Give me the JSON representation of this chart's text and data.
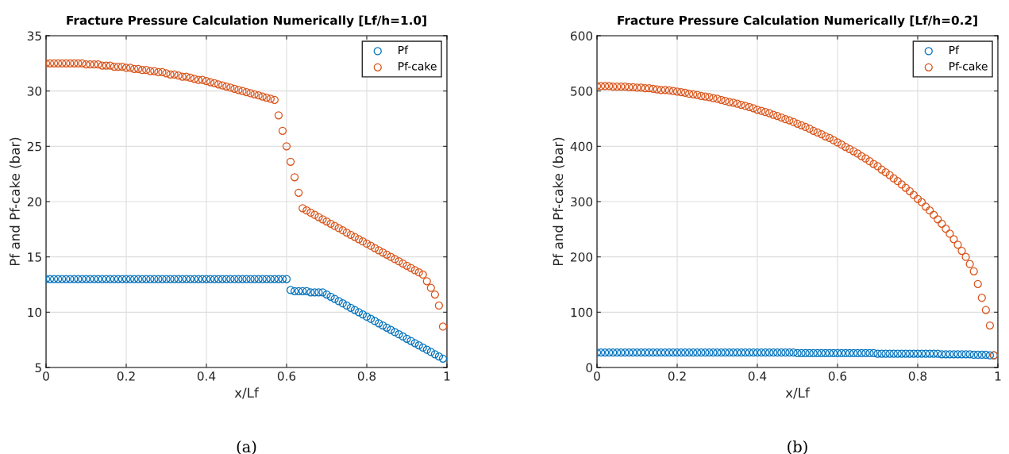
{
  "chart_data": [
    {
      "type": "scatter",
      "title": "Fracture Pressure Calculation Numerically [Lf/h=1.0]",
      "xlabel": "x/Lf",
      "ylabel": "Pf and Pf-cake (bar)",
      "annotations": [
        "(a)"
      ],
      "x": [
        0,
        0.01,
        0.02,
        0.03,
        0.04,
        0.05,
        0.06,
        0.07,
        0.08,
        0.09,
        0.1,
        0.11,
        0.12,
        0.13,
        0.14,
        0.15,
        0.16,
        0.17,
        0.18,
        0.19,
        0.2,
        0.21,
        0.22,
        0.23,
        0.24,
        0.25,
        0.26,
        0.27,
        0.28,
        0.29,
        0.3,
        0.31,
        0.32,
        0.33,
        0.34,
        0.35,
        0.36,
        0.37,
        0.38,
        0.39,
        0.4,
        0.41,
        0.42,
        0.43,
        0.44,
        0.45,
        0.46,
        0.47,
        0.48,
        0.49,
        0.5,
        0.51,
        0.52,
        0.53,
        0.54,
        0.55,
        0.56,
        0.57,
        0.58,
        0.59,
        0.6,
        0.61,
        0.62,
        0.63,
        0.64,
        0.65,
        0.66,
        0.67,
        0.68,
        0.69,
        0.7,
        0.71,
        0.72,
        0.73,
        0.74,
        0.75,
        0.76,
        0.77,
        0.78,
        0.79,
        0.8,
        0.81,
        0.82,
        0.83,
        0.84,
        0.85,
        0.86,
        0.87,
        0.88,
        0.89,
        0.9,
        0.91,
        0.92,
        0.93,
        0.94,
        0.95,
        0.96,
        0.97,
        0.98,
        0.99
      ],
      "series": [
        {
          "name": "Pf",
          "color": "#0072bd",
          "values": [
            13,
            13,
            13,
            13,
            13,
            13,
            13,
            13,
            13,
            13,
            13,
            13,
            13,
            13,
            13,
            13,
            13,
            13,
            13,
            13,
            13,
            13,
            13,
            13,
            13,
            13,
            13,
            13,
            13,
            13,
            13,
            13,
            13,
            13,
            13,
            13,
            13,
            13,
            13,
            13,
            13,
            13,
            13,
            13,
            13,
            13,
            13,
            13,
            13,
            13,
            13,
            13,
            13,
            13,
            13,
            13,
            13,
            13,
            13,
            13,
            13,
            12.0,
            11.9,
            11.9,
            11.9,
            11.9,
            11.8,
            11.8,
            11.8,
            11.8,
            11.6,
            11.4,
            11.2,
            11.0,
            10.8,
            10.6,
            10.4,
            10.2,
            10.0,
            9.8,
            9.6,
            9.4,
            9.2,
            9.0,
            8.8,
            8.6,
            8.4,
            8.2,
            8.0,
            7.8,
            7.6,
            7.4,
            7.2,
            7.0,
            6.8,
            6.6,
            6.4,
            6.2,
            6.0,
            5.8
          ]
        },
        {
          "name": "Pf-cake",
          "color": "#d95319",
          "values": [
            32.5,
            32.5,
            32.5,
            32.5,
            32.5,
            32.5,
            32.5,
            32.5,
            32.5,
            32.5,
            32.4,
            32.4,
            32.4,
            32.4,
            32.3,
            32.3,
            32.3,
            32.2,
            32.2,
            32.2,
            32.1,
            32.1,
            32.0,
            32.0,
            31.9,
            31.9,
            31.8,
            31.8,
            31.7,
            31.7,
            31.6,
            31.5,
            31.5,
            31.4,
            31.3,
            31.3,
            31.2,
            31.1,
            31.0,
            31.0,
            30.9,
            30.8,
            30.7,
            30.6,
            30.5,
            30.4,
            30.3,
            30.2,
            30.1,
            30.0,
            29.9,
            29.8,
            29.7,
            29.6,
            29.5,
            29.4,
            29.3,
            29.2,
            27.8,
            26.4,
            25.0,
            23.6,
            22.2,
            20.8,
            19.4,
            19.2,
            19.0,
            18.8,
            18.6,
            18.4,
            18.2,
            18.0,
            17.8,
            17.6,
            17.4,
            17.2,
            17.0,
            16.8,
            16.6,
            16.4,
            16.2,
            16.0,
            15.8,
            15.6,
            15.4,
            15.2,
            15.0,
            14.8,
            14.6,
            14.4,
            14.2,
            14.0,
            13.8,
            13.6,
            13.4,
            12.8,
            12.2,
            11.6,
            10.6,
            8.7
          ]
        }
      ],
      "xlim": [
        0,
        1
      ],
      "xticks": [
        0,
        0.2,
        0.4,
        0.6,
        0.8,
        1
      ],
      "ylim": [
        5,
        35
      ],
      "yticks": [
        5,
        10,
        15,
        20,
        25,
        30,
        35
      ],
      "grid": true,
      "legend": "top right",
      "marker": "circle"
    },
    {
      "type": "scatter",
      "title": "Fracture Pressure Calculation Numerically [Lf/h=0.2]",
      "xlabel": "x/Lf",
      "ylabel": "Pf and Pf-cake (bar)",
      "annotations": [
        "(b)"
      ],
      "x": [
        0,
        0.01,
        0.02,
        0.03,
        0.04,
        0.05,
        0.06,
        0.07,
        0.08,
        0.09,
        0.1,
        0.11,
        0.12,
        0.13,
        0.14,
        0.15,
        0.16,
        0.17,
        0.18,
        0.19,
        0.2,
        0.21,
        0.22,
        0.23,
        0.24,
        0.25,
        0.26,
        0.27,
        0.28,
        0.29,
        0.3,
        0.31,
        0.32,
        0.33,
        0.34,
        0.35,
        0.36,
        0.37,
        0.38,
        0.39,
        0.4,
        0.41,
        0.42,
        0.43,
        0.44,
        0.45,
        0.46,
        0.47,
        0.48,
        0.49,
        0.5,
        0.51,
        0.52,
        0.53,
        0.54,
        0.55,
        0.56,
        0.57,
        0.58,
        0.59,
        0.6,
        0.61,
        0.62,
        0.63,
        0.64,
        0.65,
        0.66,
        0.67,
        0.68,
        0.69,
        0.7,
        0.71,
        0.72,
        0.73,
        0.74,
        0.75,
        0.76,
        0.77,
        0.78,
        0.79,
        0.8,
        0.81,
        0.82,
        0.83,
        0.84,
        0.85,
        0.86,
        0.87,
        0.88,
        0.89,
        0.9,
        0.91,
        0.92,
        0.93,
        0.94,
        0.95,
        0.96,
        0.97,
        0.98,
        0.99
      ],
      "series": [
        {
          "name": "Pf",
          "color": "#0072bd",
          "values": [
            27,
            27,
            27,
            27,
            27,
            27,
            27,
            27,
            27,
            27,
            27,
            27,
            27,
            27,
            27,
            27,
            27,
            27,
            27,
            27,
            27,
            27,
            27,
            27,
            27,
            27,
            27,
            27,
            27,
            27,
            27,
            27,
            27,
            27,
            27,
            27,
            27,
            27,
            27,
            27,
            27,
            27,
            27,
            27,
            27,
            27,
            27,
            27,
            27,
            27,
            26,
            26,
            26,
            26,
            26,
            26,
            26,
            26,
            26,
            26,
            26,
            26,
            26,
            26,
            26,
            26,
            26,
            26,
            26,
            26,
            25,
            25,
            25,
            25,
            25,
            25,
            25,
            25,
            25,
            25,
            25,
            25,
            25,
            25,
            25,
            25,
            24,
            24,
            24,
            24,
            24,
            24,
            24,
            24,
            23,
            23,
            23,
            23,
            22,
            22
          ]
        },
        {
          "name": "Pf-cake",
          "color": "#d95319",
          "values": [
            509,
            509,
            509,
            509,
            508,
            508,
            508,
            508,
            507,
            507,
            506,
            506,
            505,
            505,
            504,
            503,
            502,
            502,
            501,
            500,
            499,
            498,
            497,
            495,
            494,
            493,
            491,
            490,
            489,
            487,
            486,
            484,
            482,
            480,
            479,
            477,
            475,
            473,
            471,
            469,
            466,
            464,
            462,
            460,
            457,
            455,
            452,
            449,
            447,
            444,
            441,
            438,
            435,
            432,
            428,
            425,
            422,
            418,
            415,
            411,
            407,
            403,
            399,
            395,
            391,
            387,
            382,
            378,
            373,
            368,
            364,
            358,
            353,
            348,
            342,
            337,
            331,
            325,
            319,
            312,
            305,
            299,
            291,
            284,
            276,
            268,
            260,
            251,
            242,
            232,
            222,
            211,
            200,
            187,
            174,
            151,
            126,
            104,
            76,
            22
          ]
        }
      ],
      "xlim": [
        0,
        1
      ],
      "xticks": [
        0,
        0.2,
        0.4,
        0.6,
        0.8,
        1
      ],
      "ylim": [
        0,
        600
      ],
      "yticks": [
        0,
        100,
        200,
        300,
        400,
        500,
        600
      ],
      "grid": true,
      "legend": "top right",
      "marker": "circle"
    }
  ]
}
